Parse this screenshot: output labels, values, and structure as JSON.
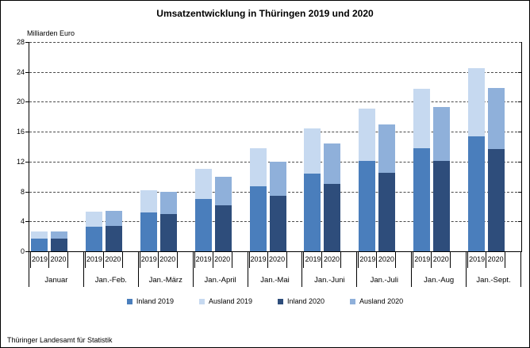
{
  "title": "Umsatzentwicklung in Thüringen 2019 und 2020",
  "y_axis_title": "Milliarden Euro",
  "footer": "Thüringer Landesamt für Statistik",
  "colors": {
    "inland_2019": "#4a7ebc",
    "ausland_2019": "#c6d9f0",
    "inland_2020": "#2e4d7b",
    "ausland_2020": "#8fb0da",
    "grid": "#4a4a4a",
    "axis": "#000000"
  },
  "legend": {
    "items": [
      {
        "label": "Inland 2019",
        "color": "#4a7ebc"
      },
      {
        "label": "Ausland 2019",
        "color": "#c6d9f0"
      },
      {
        "label": "Inland 2020",
        "color": "#2e4d7b"
      },
      {
        "label": "Ausland 2020",
        "color": "#8fb0da"
      }
    ]
  },
  "chart_data": {
    "type": "bar",
    "stacked": true,
    "orientation": "vertical",
    "title": "Umsatzentwicklung in Thüringen 2019 und 2020",
    "ylabel": "Milliarden Euro",
    "ylim": [
      0,
      28
    ],
    "yticks": [
      0,
      4,
      8,
      12,
      16,
      20,
      24,
      28
    ],
    "grid": "horizontal-dashed",
    "legend_position": "bottom",
    "categories": [
      "Januar",
      "Jan.-Feb.",
      "Jan.-März",
      "Jan.-April",
      "Jan.-Mai",
      "Jan.-Juni",
      "Jan.-Juli",
      "Jan.-Aug",
      "Jan.-Sept."
    ],
    "bar_labels": [
      "2019",
      "2020"
    ],
    "series": [
      {
        "name": "Inland 2019",
        "bar": "2019",
        "color": "#4a7ebc",
        "values": [
          1.7,
          3.3,
          5.2,
          7.0,
          8.7,
          10.4,
          12.1,
          13.8,
          15.4
        ]
      },
      {
        "name": "Ausland 2019",
        "bar": "2019",
        "color": "#c6d9f0",
        "values": [
          1.0,
          2.0,
          3.0,
          4.0,
          5.1,
          6.0,
          7.0,
          8.0,
          9.1
        ]
      },
      {
        "name": "Inland 2020",
        "bar": "2020",
        "color": "#2e4d7b",
        "values": [
          1.7,
          3.4,
          5.0,
          6.2,
          7.4,
          9.0,
          10.5,
          12.1,
          13.7
        ]
      },
      {
        "name": "Ausland 2020",
        "bar": "2020",
        "color": "#8fb0da",
        "values": [
          1.0,
          2.0,
          3.0,
          3.8,
          4.6,
          5.4,
          6.5,
          7.2,
          8.2
        ]
      }
    ]
  }
}
